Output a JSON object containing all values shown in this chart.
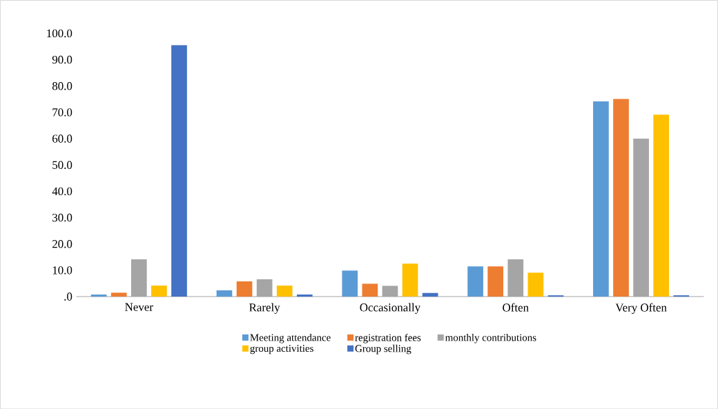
{
  "chart_data": {
    "type": "bar",
    "categories": [
      "Never",
      "Rarely",
      "Occasionally",
      "Often",
      "Very Often"
    ],
    "series": [
      {
        "name": "Meeting attendance",
        "color": "#5b9bd5",
        "values": [
          0.8,
          2.4,
          9.9,
          11.5,
          74.2
        ]
      },
      {
        "name": "registration fees",
        "color": "#ed7d31",
        "values": [
          1.5,
          5.8,
          4.9,
          11.5,
          75.1
        ]
      },
      {
        "name": "monthly contributions",
        "color": "#a5a5a5",
        "values": [
          14.2,
          6.6,
          4.1,
          14.2,
          60.0
        ]
      },
      {
        "name": "group activities",
        "color": "#ffc000",
        "values": [
          4.2,
          4.2,
          12.5,
          9.1,
          69.1
        ]
      },
      {
        "name": "Group selling",
        "color": "#4472c4",
        "values": [
          95.5,
          0.8,
          1.4,
          0.5,
          0.5
        ]
      }
    ],
    "ylim": [
      0,
      100
    ],
    "yticks": [
      {
        "value": 0,
        "label": ".0"
      },
      {
        "value": 10,
        "label": "10.0"
      },
      {
        "value": 20,
        "label": "20.0"
      },
      {
        "value": 30,
        "label": "30.0"
      },
      {
        "value": 40,
        "label": "40.0"
      },
      {
        "value": 50,
        "label": "50.0"
      },
      {
        "value": 60,
        "label": "60.0"
      },
      {
        "value": 70,
        "label": "70.0"
      },
      {
        "value": 80,
        "label": "80.0"
      },
      {
        "value": 90,
        "label": "90.0"
      },
      {
        "value": 100,
        "label": "100.0"
      }
    ],
    "grid": false,
    "legend": "bottom"
  }
}
